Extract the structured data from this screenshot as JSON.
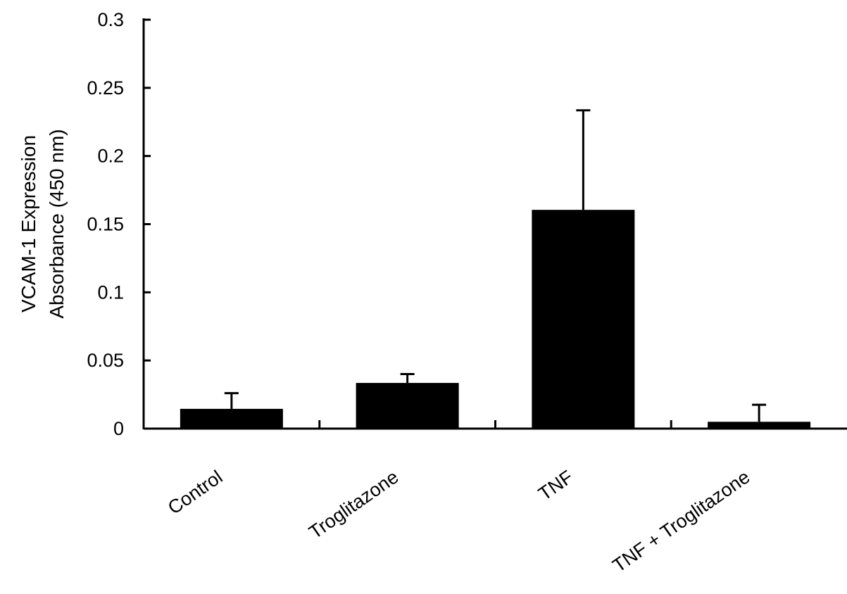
{
  "chart_data": {
    "type": "bar",
    "title": "",
    "ylabel_lines": [
      "VCAM-1 Expression",
      "Absorbance (450 nm)"
    ],
    "xlabel": "",
    "categories": [
      "Control",
      "Troglitazone",
      "TNF",
      "TNF + Troglitazone"
    ],
    "values": [
      0.0145,
      0.0335,
      0.1605,
      0.005
    ],
    "errors": [
      0.0115,
      0.0065,
      0.073,
      0.0125
    ],
    "ylim": [
      0,
      0.3
    ],
    "yticks": [
      "0",
      "0.05",
      "0.1",
      "0.15",
      "0.2",
      "0.25",
      "0.3"
    ],
    "grid": false,
    "bar_color": "#000000"
  }
}
